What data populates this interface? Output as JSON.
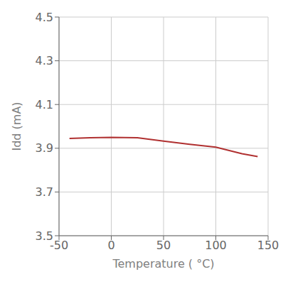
{
  "chart_data": {
    "type": "line",
    "xlabel": "Temperature ( °C)",
    "ylabel": "Idd (mA)",
    "x": [
      -40,
      -20,
      0,
      25,
      50,
      75,
      100,
      125,
      140
    ],
    "values": [
      3.945,
      3.948,
      3.95,
      3.948,
      3.933,
      3.918,
      3.905,
      3.875,
      3.862
    ],
    "color": "#b03030",
    "xlim": [
      -50,
      150
    ],
    "ylim": [
      3.5,
      4.5
    ],
    "xticks": [
      -50,
      0,
      50,
      100,
      150
    ],
    "yticks": [
      3.5,
      3.7,
      3.9,
      4.1,
      4.3,
      4.5
    ],
    "grid": true
  }
}
